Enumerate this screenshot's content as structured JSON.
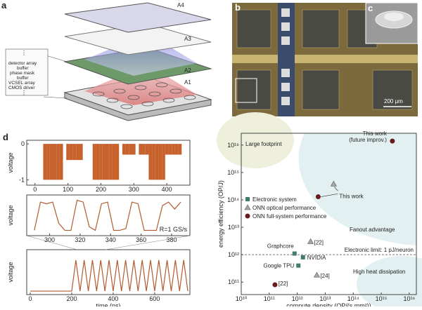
{
  "figure": {
    "panel_a": {
      "label": "a",
      "layers": [
        "A4",
        "A3",
        "A2",
        "A1"
      ],
      "stack_labels": [
        "⋮",
        "detector array",
        "buffer",
        "phase mask",
        "buffer",
        "VCSEL array",
        "CMOS driver",
        "⋮"
      ]
    },
    "panel_b": {
      "label": "b"
    },
    "panel_c": {
      "label": "c",
      "scale": "200 μm"
    },
    "panel_d": {
      "label": "d"
    }
  },
  "chart_data": [
    {
      "type": "step-area",
      "ylabel": "voltage",
      "color": "#c8622c",
      "x": [
        0,
        10,
        20,
        30,
        40,
        50,
        60,
        70,
        80,
        90,
        100,
        110,
        120,
        130,
        140,
        150,
        160,
        170,
        180,
        190,
        200,
        210,
        220,
        230,
        240,
        250,
        260,
        270,
        280,
        290,
        300,
        310,
        320,
        330,
        340,
        350,
        360,
        370,
        380,
        390,
        400,
        410,
        420,
        430,
        440,
        450,
        460,
        470
      ],
      "values": [
        0,
        0,
        0,
        -1,
        -1,
        -1,
        -1,
        -1,
        -1,
        0,
        -0.45,
        -0.45,
        -0.45,
        -0.45,
        -0.45,
        0,
        0,
        0,
        -1,
        -1,
        -1,
        -1,
        -1,
        -1,
        -1,
        -1,
        0,
        -0.3,
        -0.3,
        -0.3,
        -0.3,
        0,
        -0.3,
        -0.3,
        -0.3,
        -1,
        -1,
        -1,
        -1,
        -1,
        -0.3,
        -0.3,
        -0.3,
        -0.3,
        -0.3,
        0,
        0,
        0
      ],
      "xlim": [
        -25,
        470
      ],
      "xticks": [
        0,
        100,
        200,
        300,
        400
      ],
      "ylim": [
        -1.15,
        0.1
      ],
      "yticks": [
        0,
        -1
      ]
    },
    {
      "type": "line",
      "ylabel": "voltage",
      "color": "#b35a2e",
      "annotation": "R=1 GS/s",
      "x": [
        290,
        294,
        298,
        302,
        306,
        310,
        314,
        318,
        322,
        326,
        330,
        334,
        338,
        342,
        346,
        350,
        354,
        358,
        362,
        366,
        370,
        374,
        378,
        382,
        386
      ],
      "values": [
        0.1,
        0.9,
        0.85,
        0.9,
        0.3,
        0.1,
        0.1,
        0.95,
        0.9,
        0.2,
        0.1,
        0.85,
        0.9,
        0.1,
        0.1,
        0.15,
        0.9,
        0.85,
        0.1,
        0.1,
        0.1,
        0.8,
        0.9,
        0.7,
        0.9
      ],
      "xlim": [
        285,
        392
      ],
      "xticks": [
        300,
        320,
        340,
        360,
        380
      ],
      "ylim": [
        -0.05,
        1.1
      ]
    },
    {
      "type": "line",
      "ylabel": "voltage",
      "xlabel": "time (ns)",
      "color": "#b35a2e",
      "x": [
        0,
        20,
        40,
        60,
        80,
        100,
        120,
        140,
        160,
        180,
        200,
        220,
        240,
        260,
        280,
        300,
        320,
        340,
        360,
        380,
        400,
        420,
        440,
        460,
        480,
        500,
        520,
        540,
        560,
        580,
        600,
        620,
        640,
        660,
        680,
        700,
        720,
        740,
        760
      ],
      "values": [
        0,
        0,
        0,
        0,
        0,
        0,
        0,
        0,
        0,
        0,
        0,
        0.9,
        0,
        0.9,
        0,
        0.9,
        0,
        0.9,
        0,
        0.9,
        0,
        0.9,
        0,
        0.9,
        0,
        0.9,
        0,
        0.9,
        0,
        0.9,
        0,
        0.9,
        0,
        0.9,
        0,
        0.9,
        0,
        0.9,
        0
      ],
      "xlim": [
        -17,
        770
      ],
      "xticks": [
        0,
        200,
        400,
        600
      ],
      "ylim": [
        -0.1,
        1.2
      ]
    },
    {
      "type": "scatter",
      "xlabel": "compute density (OP/(s mm²))",
      "ylabel": "energy efficiency (OP/J)",
      "log_x": true,
      "log_y": true,
      "xlim": [
        10000000000.0,
        1.8e+16
      ],
      "ylim": [
        35000000000.0,
        2.7e+16
      ],
      "xticks": [
        {
          "value": 10000000000.0,
          "label": "10¹⁰"
        },
        {
          "value": 100000000000.0,
          "label": "10¹¹"
        },
        {
          "value": 1000000000000.0,
          "label": "10¹²"
        },
        {
          "value": 10000000000000.0,
          "label": "10¹³"
        },
        {
          "value": 100000000000000.0,
          "label": "10¹⁴"
        },
        {
          "value": 1000000000000000.0,
          "label": "10¹⁵"
        },
        {
          "value": 1e+16,
          "label": "10¹⁶"
        }
      ],
      "yticks": [
        {
          "value": 100000000000.0,
          "label": "10¹¹"
        },
        {
          "value": 1000000000000.0,
          "label": "10¹²"
        },
        {
          "value": 10000000000000.0,
          "label": "10¹³"
        },
        {
          "value": 100000000000000.0,
          "label": "10¹⁴"
        },
        {
          "value": 1000000000000000.0,
          "label": "10¹⁵"
        },
        {
          "value": 1e+16,
          "label": "10¹⁶"
        }
      ],
      "regions": [
        "Large footprint",
        "Fanout advantage",
        "High heat dissipation"
      ],
      "reference_line": {
        "value": 1000000000000.0,
        "label": "Electronic limit: 1 pJ/neuron"
      },
      "legend": "upper-left",
      "series": [
        {
          "name": "Electronic system",
          "marker": "square",
          "color": "#3f7d6e",
          "x": [
            800000000000.0,
            1600000000000.0,
            1100000000000.0
          ],
          "values": [
            1100000000000.0,
            800000000000.0,
            400000000000.0
          ],
          "labels": [
            [
              "Graphcore"
            ],
            [
              "NVIDIA"
            ],
            [
              "Google TPU"
            ]
          ]
        },
        {
          "name": "ONN optical performance",
          "marker": "triangle",
          "color": "#a8a8a0",
          "x": [
            20000000000000.0,
            3000000000000.0,
            5000000000000.0
          ],
          "values": [
            380000000000000.0,
            3000000000000.0,
            180000000000.0
          ],
          "labels": [
            [
              "This work"
            ],
            [
              "[22]"
            ],
            [
              "[24]"
            ]
          ]
        },
        {
          "name": "ONN full-system performance",
          "marker": "circle",
          "color": "#6a1c1c",
          "x": [
            2500000000000000.0,
            5600000000000.0,
            160000000000.0
          ],
          "values": [
            1.4e+16,
            130000000000000.0,
            80000000000.0
          ],
          "labels": [
            [
              "This work",
              "(future improv.)"
            ],
            null,
            [
              "[22]"
            ]
          ]
        }
      ]
    }
  ]
}
